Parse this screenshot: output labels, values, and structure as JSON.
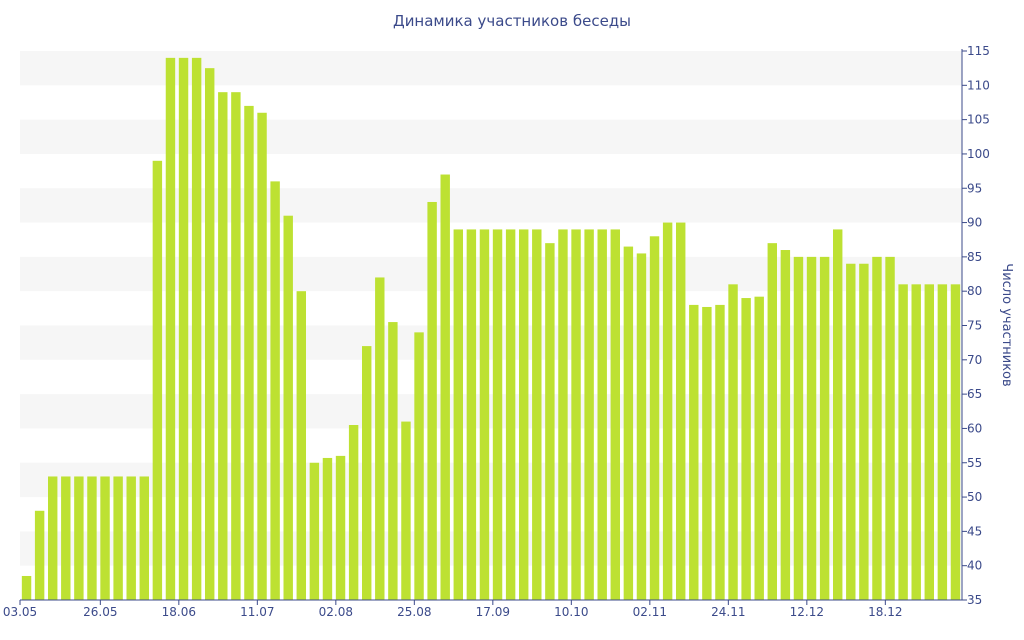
{
  "chart_data": {
    "type": "bar",
    "title": "Динамика участников беседы",
    "ylabel": "Число участников",
    "ylim": [
      35,
      115
    ],
    "ytick_step": 5,
    "y_axis_side": "right",
    "grid": "alternating horizontal bands",
    "x_tick_labels": [
      "03.05",
      "26.05",
      "18.06",
      "11.07",
      "02.08",
      "25.08",
      "17.09",
      "10.10",
      "02.11",
      "24.11",
      "12.12",
      "18.12"
    ],
    "x_tick_bar_index": [
      0,
      6,
      12,
      18,
      24,
      30,
      36,
      42,
      48,
      54,
      60,
      66
    ],
    "values": [
      38.5,
      48,
      53,
      53,
      53,
      53,
      53,
      53,
      53,
      53,
      99,
      114,
      114,
      114,
      112.5,
      109,
      109,
      107,
      106,
      96,
      91,
      80,
      55,
      55.7,
      56,
      60.5,
      72,
      82,
      75.5,
      61,
      74,
      93,
      97,
      89,
      89,
      89,
      89,
      89,
      89,
      89,
      87,
      89,
      89,
      89,
      89,
      89,
      86.5,
      85.5,
      88,
      90,
      90,
      78,
      77.7,
      78,
      81,
      79,
      79.2,
      87,
      86,
      85,
      85,
      85,
      89,
      84,
      84,
      85,
      85,
      81,
      81,
      81,
      81,
      81
    ],
    "bar_color": "#bde132"
  }
}
